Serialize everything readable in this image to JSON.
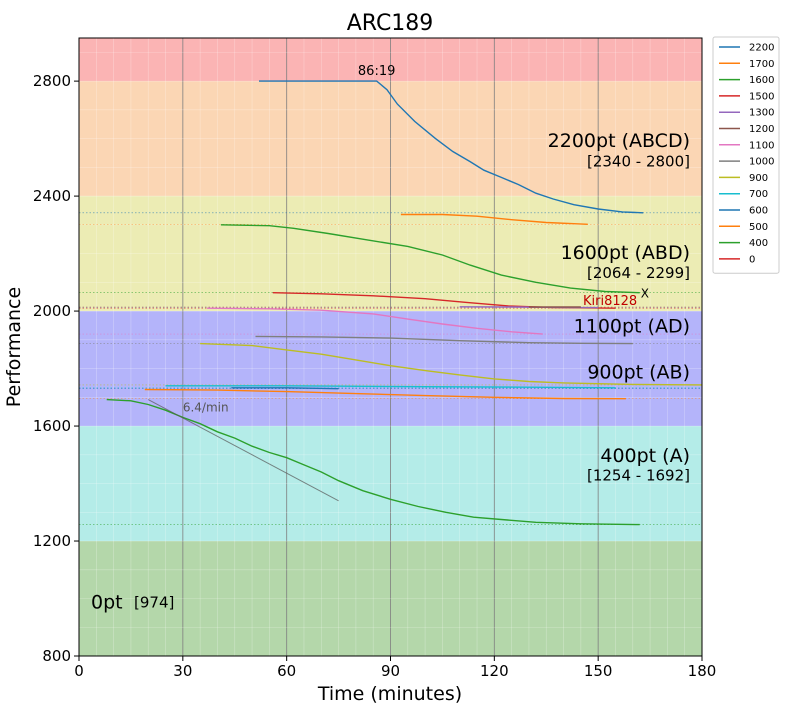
{
  "chart_data": {
    "type": "line",
    "title": "ARC189",
    "xlabel": "Time (minutes)",
    "ylabel": "Performance",
    "xlim": [
      0,
      180
    ],
    "ylim": [
      800,
      2950
    ],
    "x_ticks": [
      {
        "v": 0,
        "label": "0"
      },
      {
        "v": 30,
        "label": "30"
      },
      {
        "v": 60,
        "label": "60"
      },
      {
        "v": 90,
        "label": "90"
      },
      {
        "v": 120,
        "label": "120"
      },
      {
        "v": 150,
        "label": "150"
      },
      {
        "v": 180,
        "label": "180"
      }
    ],
    "y_ticks": [
      {
        "v": 800,
        "label": "800"
      },
      {
        "v": 1200,
        "label": "1200"
      },
      {
        "v": 1600,
        "label": "1600"
      },
      {
        "v": 2000,
        "label": "2000"
      },
      {
        "v": 2400,
        "label": "2400"
      },
      {
        "v": 2800,
        "label": "2800"
      }
    ],
    "bands": [
      {
        "from": 800,
        "to": 1200,
        "color": "#b4d7aa"
      },
      {
        "from": 1200,
        "to": 1600,
        "color": "#b4ece8"
      },
      {
        "from": 1600,
        "to": 2000,
        "color": "#b4b4fa"
      },
      {
        "from": 2000,
        "to": 2400,
        "color": "#ececb4"
      },
      {
        "from": 2400,
        "to": 2800,
        "color": "#fbd6b4"
      },
      {
        "from": 2800,
        "to": 2950,
        "color": "#fbb4b4"
      }
    ],
    "band_labels": [
      {
        "name": "2200pt (ABCD)",
        "range": "[2340 - 2800]",
        "y_name": 2595,
        "y_range": 2520
      },
      {
        "name": "1600pt (ABD)",
        "range": "[2064 - 2299]",
        "y_name": 2205,
        "y_range": 2133
      },
      {
        "name": "1100pt (AD)",
        "range": "",
        "y_name": 1950,
        "y_range": null
      },
      {
        "name": "900pt (AB)",
        "range": "",
        "y_name": 1790,
        "y_range": null
      },
      {
        "name": "400pt (A)",
        "range": "[1254 - 1692]",
        "y_name": 1500,
        "y_range": 1428
      }
    ],
    "zero_label": {
      "name": "0pt",
      "range": "[974]",
      "y": 990
    },
    "annotations": {
      "top_time": "86:19",
      "slope": "6.4/min",
      "user": "Kiri8128",
      "marker": "X"
    },
    "series": [
      {
        "name": "2200",
        "color": "#1f77b4",
        "points": [
          [
            52,
            2800
          ],
          [
            86,
            2800
          ],
          [
            89,
            2770
          ],
          [
            92,
            2720
          ],
          [
            97,
            2660
          ],
          [
            103,
            2600
          ],
          [
            108,
            2555
          ],
          [
            113,
            2520
          ],
          [
            117,
            2490
          ],
          [
            122,
            2465
          ],
          [
            127,
            2440
          ],
          [
            132,
            2410
          ],
          [
            137,
            2390
          ],
          [
            143,
            2370
          ],
          [
            150,
            2355
          ],
          [
            157,
            2345
          ],
          [
            163,
            2342
          ]
        ]
      },
      {
        "name": "1700",
        "color": "#ff7f0e",
        "points": [
          [
            93,
            2336
          ],
          [
            105,
            2336
          ],
          [
            115,
            2330
          ],
          [
            125,
            2318
          ],
          [
            135,
            2308
          ],
          [
            147,
            2302
          ]
        ]
      },
      {
        "name": "1600",
        "color": "#2ca02c",
        "points": [
          [
            41,
            2300
          ],
          [
            55,
            2297
          ],
          [
            62,
            2288
          ],
          [
            72,
            2270
          ],
          [
            82,
            2250
          ],
          [
            95,
            2225
          ],
          [
            105,
            2195
          ],
          [
            113,
            2160
          ],
          [
            122,
            2125
          ],
          [
            132,
            2100
          ],
          [
            142,
            2080
          ],
          [
            152,
            2068
          ],
          [
            162,
            2064
          ]
        ]
      },
      {
        "name": "1500",
        "color": "#d62728",
        "points": [
          [
            56,
            2064
          ],
          [
            70,
            2060
          ],
          [
            85,
            2053
          ],
          [
            100,
            2043
          ],
          [
            112,
            2030
          ],
          [
            124,
            2018
          ],
          [
            137,
            2012
          ],
          [
            155,
            2010
          ]
        ]
      },
      {
        "name": "1300",
        "color": "#9467bd",
        "points": [
          [
            110,
            2015
          ],
          [
            125,
            2014
          ],
          [
            142,
            2012
          ],
          [
            150,
            2012
          ]
        ]
      },
      {
        "name": "1200",
        "color": "#8c564b",
        "points": [
          [
            130,
            2014
          ],
          [
            145,
            2014
          ]
        ]
      },
      {
        "name": "1100",
        "color": "#e377c2",
        "points": [
          [
            37,
            2010
          ],
          [
            55,
            2008
          ],
          [
            70,
            2003
          ],
          [
            85,
            1990
          ],
          [
            95,
            1972
          ],
          [
            105,
            1955
          ],
          [
            115,
            1940
          ],
          [
            125,
            1928
          ],
          [
            134,
            1920
          ]
        ]
      },
      {
        "name": "1000",
        "color": "#7f7f7f",
        "points": [
          [
            51,
            1912
          ],
          [
            70,
            1910
          ],
          [
            90,
            1906
          ],
          [
            110,
            1897
          ],
          [
            130,
            1890
          ],
          [
            145,
            1888
          ],
          [
            160,
            1887
          ]
        ]
      },
      {
        "name": "900",
        "color": "#bcbd22",
        "points": [
          [
            35,
            1887
          ],
          [
            50,
            1880
          ],
          [
            60,
            1865
          ],
          [
            70,
            1850
          ],
          [
            80,
            1830
          ],
          [
            90,
            1810
          ],
          [
            100,
            1793
          ],
          [
            110,
            1778
          ],
          [
            120,
            1764
          ],
          [
            130,
            1755
          ],
          [
            140,
            1750
          ],
          [
            160,
            1745
          ],
          [
            180,
            1743
          ]
        ]
      },
      {
        "name": "700",
        "color": "#17becf",
        "points": [
          [
            25,
            1740
          ],
          [
            60,
            1740
          ],
          [
            100,
            1737
          ],
          [
            130,
            1735
          ],
          [
            155,
            1733
          ]
        ]
      },
      {
        "name": "600",
        "color": "#1f77b4",
        "points": [
          [
            44,
            1733
          ],
          [
            60,
            1733
          ],
          [
            75,
            1730
          ]
        ]
      },
      {
        "name": "500",
        "color": "#ff7f0e",
        "points": [
          [
            19,
            1727
          ],
          [
            40,
            1725
          ],
          [
            60,
            1720
          ],
          [
            80,
            1713
          ],
          [
            100,
            1706
          ],
          [
            120,
            1700
          ],
          [
            140,
            1696
          ],
          [
            158,
            1695
          ]
        ]
      },
      {
        "name": "400",
        "color": "#2ca02c",
        "points": [
          [
            8,
            1692
          ],
          [
            15,
            1688
          ],
          [
            20,
            1675
          ],
          [
            25,
            1655
          ],
          [
            30,
            1630
          ],
          [
            35,
            1608
          ],
          [
            40,
            1580
          ],
          [
            45,
            1558
          ],
          [
            50,
            1530
          ],
          [
            55,
            1508
          ],
          [
            60,
            1490
          ],
          [
            65,
            1465
          ],
          [
            70,
            1440
          ],
          [
            75,
            1410
          ],
          [
            82,
            1375
          ],
          [
            90,
            1345
          ],
          [
            98,
            1320
          ],
          [
            106,
            1300
          ],
          [
            114,
            1283
          ],
          [
            122,
            1275
          ],
          [
            132,
            1265
          ],
          [
            145,
            1260
          ],
          [
            162,
            1257
          ]
        ]
      },
      {
        "name": "0",
        "color": "#d62728",
        "points": []
      }
    ],
    "legend": {
      "position": "right"
    }
  }
}
